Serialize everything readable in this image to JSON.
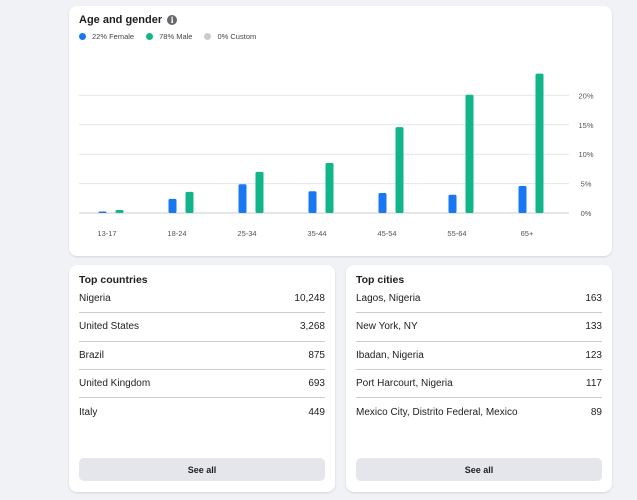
{
  "age_gender": {
    "title": "Age and gender",
    "info_icon": "info-icon",
    "legend": [
      {
        "label": "22% Female",
        "color": "#1877f2"
      },
      {
        "label": "78% Male",
        "color": "#12b48a"
      },
      {
        "label": "0% Custom",
        "color": "#c8cbd0"
      }
    ]
  },
  "chart_data": {
    "type": "bar",
    "categories": [
      "13-17",
      "18-24",
      "25-34",
      "35-44",
      "45-54",
      "55-64",
      "65+"
    ],
    "series": [
      {
        "name": "Female",
        "color": "#1877f2",
        "values": [
          0.2,
          2.4,
          4.9,
          3.7,
          3.4,
          3.1,
          4.6
        ]
      },
      {
        "name": "Male",
        "color": "#12b48a",
        "values": [
          0.5,
          3.6,
          7.0,
          8.5,
          14.6,
          20.1,
          23.7
        ]
      }
    ],
    "yticks": [
      "0%",
      "5%",
      "10%",
      "15%",
      "20%"
    ],
    "ytick_values": [
      0,
      5,
      10,
      15,
      20
    ],
    "ylim": [
      0,
      25
    ],
    "y_axis_position": "right",
    "grid": true,
    "title": "",
    "xlabel": "",
    "ylabel": ""
  },
  "top_countries": {
    "title": "Top countries",
    "rows": [
      {
        "name": "Nigeria",
        "value": "10,248"
      },
      {
        "name": "United States",
        "value": "3,268"
      },
      {
        "name": "Brazil",
        "value": "875"
      },
      {
        "name": "United Kingdom",
        "value": "693"
      },
      {
        "name": "Italy",
        "value": "449"
      }
    ],
    "see_all": "See all"
  },
  "top_cities": {
    "title": "Top cities",
    "rows": [
      {
        "name": "Lagos, Nigeria",
        "value": "163"
      },
      {
        "name": "New York, NY",
        "value": "133"
      },
      {
        "name": "Ibadan, Nigeria",
        "value": "123"
      },
      {
        "name": "Port Harcourt, Nigeria",
        "value": "117"
      },
      {
        "name": "Mexico City, Distrito Federal, Mexico",
        "value": "89"
      }
    ],
    "see_all": "See all"
  }
}
